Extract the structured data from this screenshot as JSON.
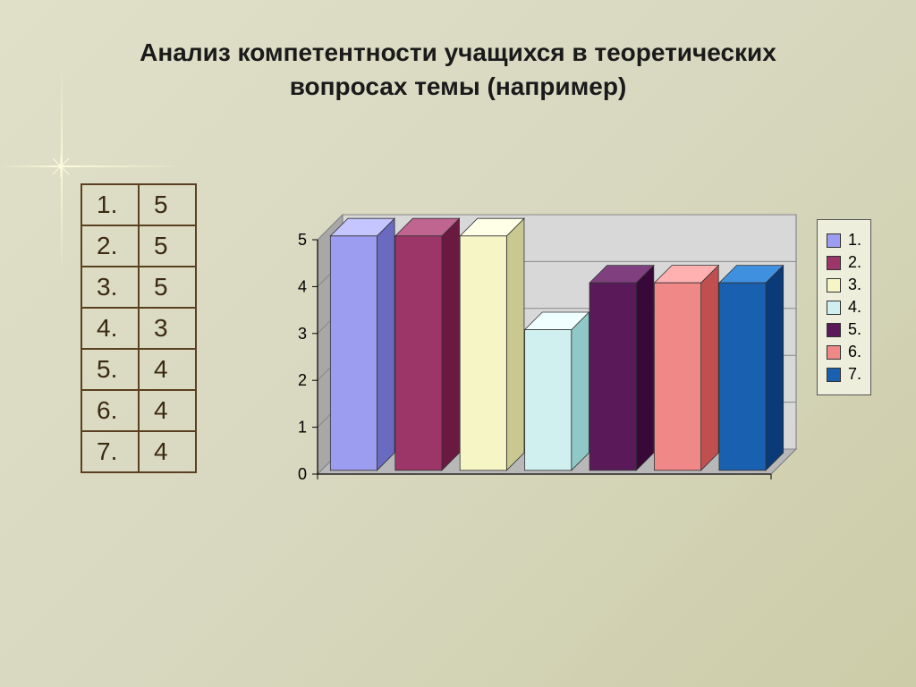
{
  "title_line1": "Анализ компетентности учащихся в теоретических",
  "title_line2": "вопросах темы (например)",
  "table": {
    "rows": [
      {
        "label": "1.",
        "value": "5"
      },
      {
        "label": "2.",
        "value": "5"
      },
      {
        "label": "3.",
        "value": "5"
      },
      {
        "label": "4.",
        "value": "3"
      },
      {
        "label": "5.",
        "value": "4"
      },
      {
        "label": "6.",
        "value": "4"
      },
      {
        "label": "7.",
        "value": "4"
      }
    ],
    "border_color": "#5a4020",
    "text_color": "#3a2a10",
    "fontsize": 28
  },
  "chart": {
    "type": "bar-3d",
    "categories": [
      "1.",
      "2.",
      "3.",
      "4.",
      "5.",
      "6.",
      "7."
    ],
    "values": [
      5,
      5,
      5,
      3,
      4,
      4,
      4
    ],
    "bar_colors": [
      "#9c9cf0",
      "#9c3568",
      "#f5f5c5",
      "#d0f0f0",
      "#5a1a5a",
      "#f08888",
      "#1a60b0"
    ],
    "bar_shade_colors": [
      "#6a6ac0",
      "#6a1a40",
      "#c8c890",
      "#90c8c8",
      "#380838",
      "#c05050",
      "#0a3a78"
    ],
    "bar_top_colors": [
      "#c5c5ff",
      "#c06590",
      "#ffffe8",
      "#f0ffff",
      "#804080",
      "#ffb0b0",
      "#4090e0"
    ],
    "floor_color": "#b8b8b8",
    "back_wall_color": "#d8d8d8",
    "side_wall_color": "#a8a8a8",
    "gridline_color": "#888888",
    "axis_label_color": "#000000",
    "ylim": [
      0,
      5
    ],
    "ytick_step": 1,
    "ytick_labels": [
      "0",
      "1",
      "2",
      "3",
      "4",
      "5"
    ],
    "label_fontsize": 18,
    "bar_width_ratio": 0.72,
    "depth": 28,
    "background_color": "transparent"
  },
  "legend": {
    "items": [
      {
        "label": "1.",
        "color": "#9c9cf0"
      },
      {
        "label": "2.",
        "color": "#9c3568"
      },
      {
        "label": "3.",
        "color": "#f5f5c5"
      },
      {
        "label": "4.",
        "color": "#d0f0f0"
      },
      {
        "label": "5.",
        "color": "#5a1a5a"
      },
      {
        "label": "6.",
        "color": "#f08888"
      },
      {
        "label": "7.",
        "color": "#1a60b0"
      }
    ],
    "border_color": "#555555",
    "background_color": "#eeeedd",
    "fontsize": 18
  },
  "slide_background": "linear-gradient(135deg, #e0e0c8 0%, #d8d8c0 50%, #cccca8 100%)"
}
